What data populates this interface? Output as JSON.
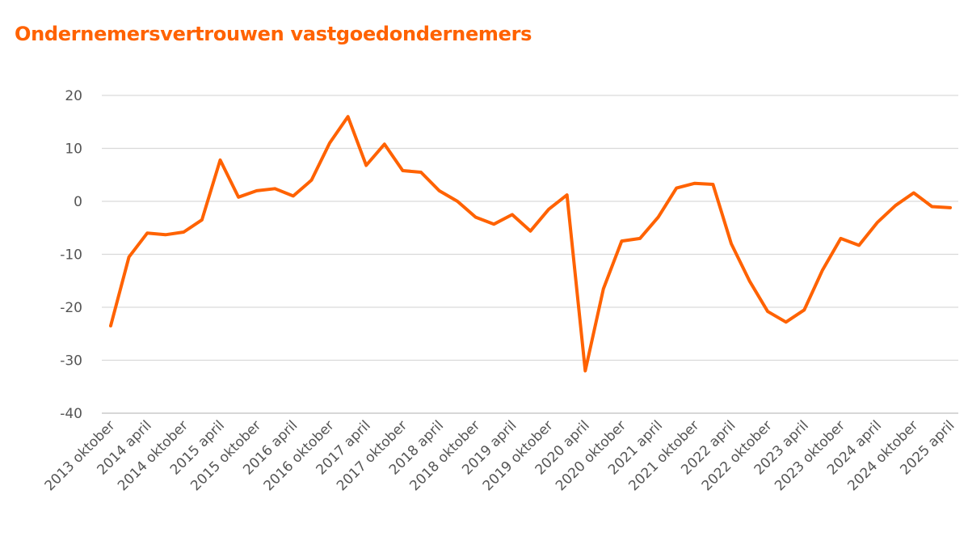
{
  "title": "Ondernemersvertrouwen vastgoedondernemers",
  "colors": {
    "line": "#ff6200",
    "title": "#ff6200",
    "grid": "#d9d9d9",
    "tick": "#555555"
  },
  "chart_data": {
    "type": "line",
    "title": "Ondernemersvertrouwen vastgoedondernemers",
    "xlabel": "",
    "ylabel": "",
    "ylim": [
      -40,
      20
    ],
    "yticks": [
      20,
      10,
      0,
      -10,
      -20,
      -30,
      -40
    ],
    "grid": true,
    "legend": "none",
    "x_tick_labels": [
      "2013 oktober",
      "2014 april",
      "2014 oktober",
      "2015 april",
      "2015 oktober",
      "2016 april",
      "2016 oktober",
      "2017 april",
      "2017 oktober",
      "2018 april",
      "2018 oktober",
      "2019 april",
      "2019 oktober",
      "2020 april",
      "2020 oktober",
      "2021 april",
      "2021 oktober",
      "2022 april",
      "2022 oktober",
      "2023 april",
      "2023 oktober",
      "2024 april",
      "2024 oktober",
      "2025 april"
    ],
    "series": [
      {
        "values": [
          -23.5,
          -10.5,
          -6.0,
          -6.3,
          -5.8,
          -3.5,
          7.8,
          0.8,
          2.0,
          2.4,
          1.0,
          4.0,
          11.0,
          16.0,
          6.8,
          10.8,
          5.8,
          5.5,
          2.0,
          0.0,
          -3.0,
          -4.3,
          -2.5,
          -5.6,
          -1.5,
          1.2,
          -32.0,
          -16.5,
          -7.5,
          -7.0,
          -3.0,
          2.5,
          3.4,
          3.2,
          -8.0,
          -15.0,
          -20.8,
          -22.8,
          -20.5,
          -13.0,
          -7.0,
          -8.3,
          -4.0,
          -0.8,
          1.6,
          -1.0,
          -1.2
        ]
      }
    ]
  }
}
